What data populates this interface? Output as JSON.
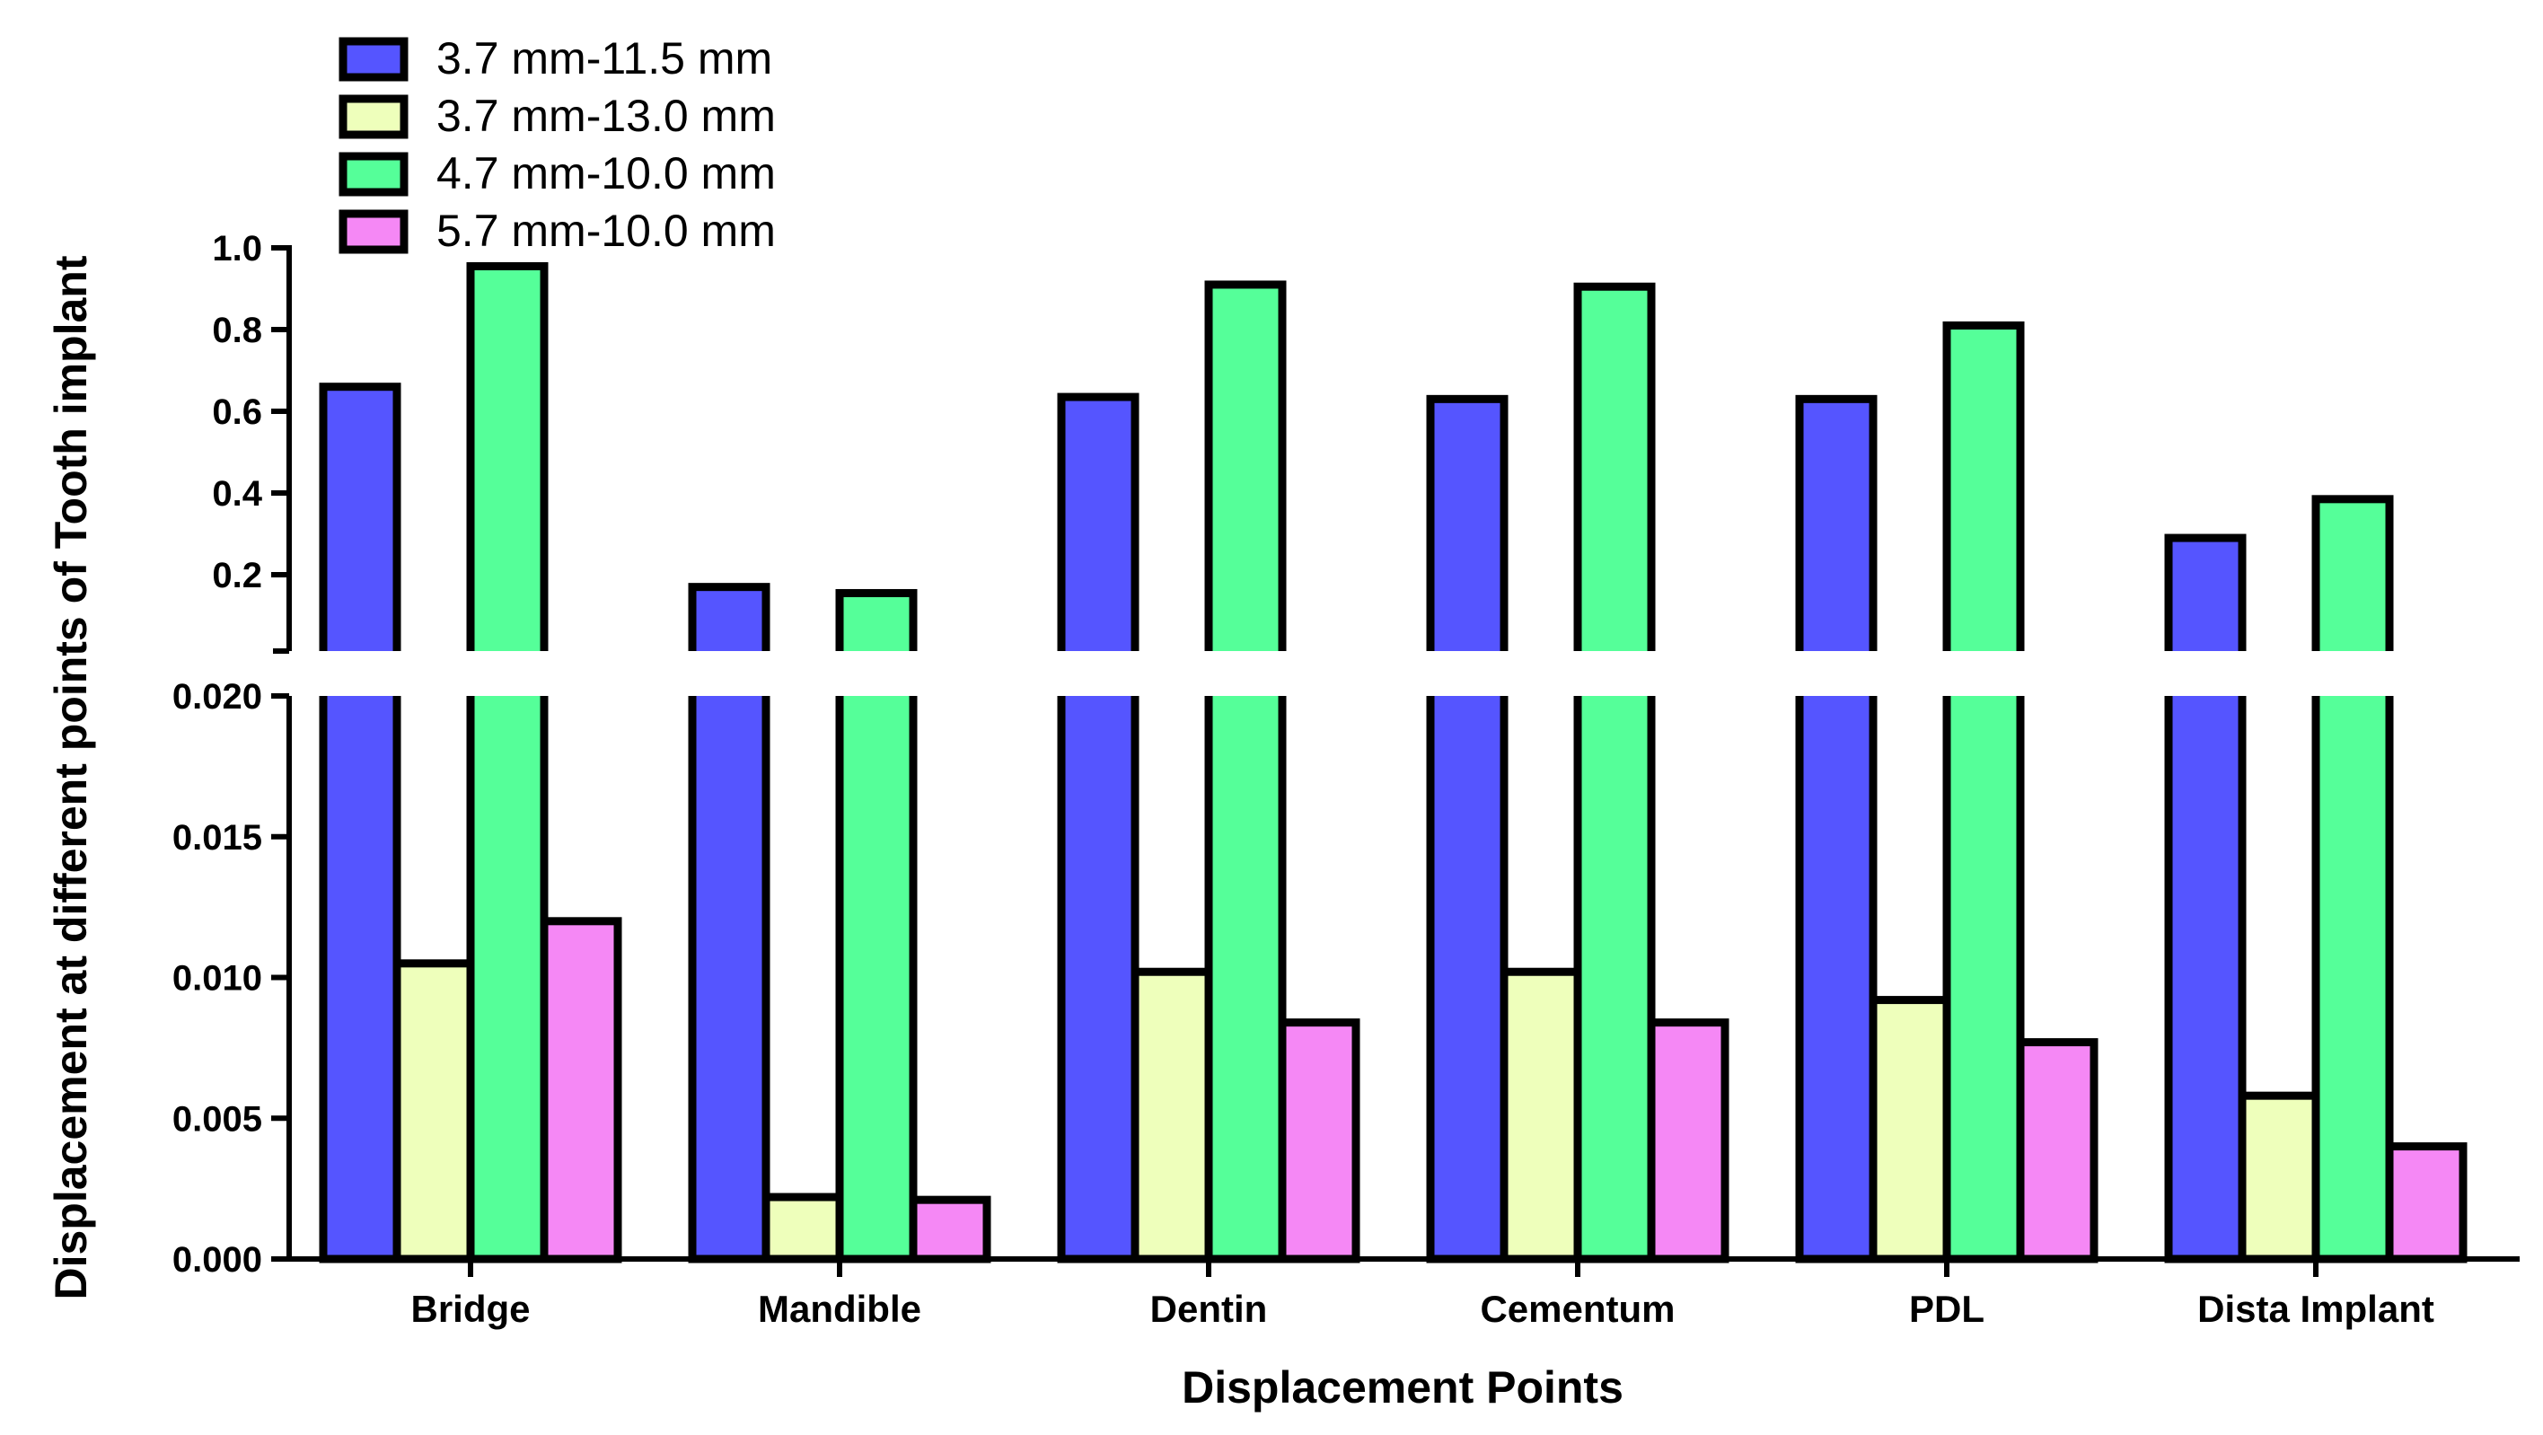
{
  "chart_data": {
    "type": "bar",
    "title": "",
    "xlabel": "Displacement Points",
    "ylabel": "Displacement at different points of Tooth implant",
    "categories": [
      "Bridge",
      "Mandible",
      "Dentin",
      "Cementum",
      "PDL",
      "Dista Implant"
    ],
    "series": [
      {
        "name": "3.7 mm-11.5 mm",
        "color": "#5555ff",
        "values": [
          0.66,
          0.17,
          0.635,
          0.63,
          0.63,
          0.29
        ]
      },
      {
        "name": "3.7 mm-13.0 mm",
        "color": "#eeffbb",
        "values": [
          0.0105,
          0.0022,
          0.0102,
          0.0102,
          0.0092,
          0.0058
        ]
      },
      {
        "name": "4.7 mm-10.0 mm",
        "color": "#55ff99",
        "values": [
          0.955,
          0.155,
          0.91,
          0.905,
          0.81,
          0.385
        ]
      },
      {
        "name": "5.7 mm-10.0 mm",
        "color": "#f588f5",
        "values": [
          0.012,
          0.0021,
          0.0084,
          0.0084,
          0.0077,
          0.004
        ]
      }
    ],
    "y_axis_segments": {
      "lower": {
        "range": [
          0,
          0.02
        ],
        "ticks": [
          "0.000",
          "0.005",
          "0.010",
          "0.015",
          "0.020"
        ]
      },
      "upper": {
        "range": [
          0.02,
          1.0
        ],
        "ticks": [
          "0.2",
          "0.4",
          "0.6",
          "0.8",
          "1.0"
        ]
      }
    },
    "legend_position": "top-left"
  }
}
